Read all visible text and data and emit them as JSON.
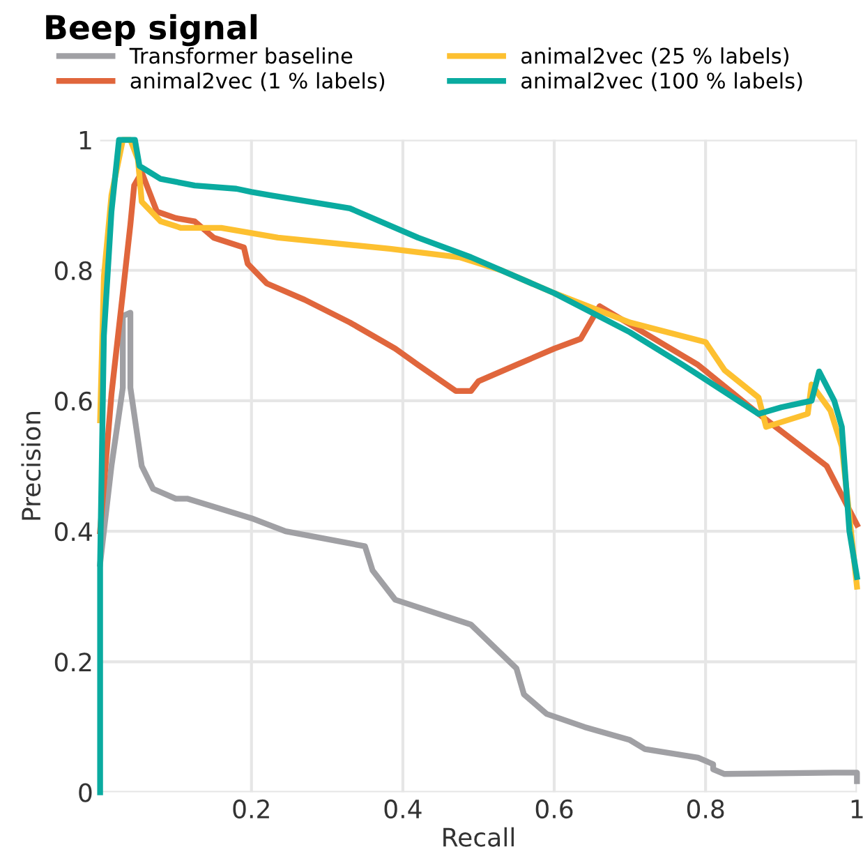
{
  "chart_data": {
    "type": "line",
    "title": "Beep signal",
    "xlabel": "Recall",
    "ylabel": "Precision",
    "xlim": [
      0,
      1
    ],
    "ylim": [
      0,
      1
    ],
    "xticks": [
      0.2,
      0.4,
      0.6,
      0.8,
      1
    ],
    "yticks": [
      0,
      0.2,
      0.4,
      0.6,
      0.8,
      1
    ],
    "grid": true,
    "legend": "top",
    "marker": "none",
    "line_style": "solid",
    "series": [
      {
        "name": "Transformer baseline",
        "color": "#a0a0a4",
        "x": [
          0,
          0.015,
          0.03,
          0.03,
          0.04,
          0.04,
          0.055,
          0.07,
          0.1,
          0.115,
          0.2,
          0.245,
          0.35,
          0.36,
          0.39,
          0.49,
          0.55,
          0.56,
          0.59,
          0.64,
          0.7,
          0.72,
          0.79,
          0.81,
          0.81,
          0.825,
          0.97,
          1.0,
          1.0
        ],
        "values": [
          0.35,
          0.5,
          0.62,
          0.73,
          0.735,
          0.62,
          0.5,
          0.465,
          0.45,
          0.45,
          0.42,
          0.4,
          0.377,
          0.34,
          0.295,
          0.257,
          0.19,
          0.15,
          0.12,
          0.1,
          0.08,
          0.066,
          0.053,
          0.043,
          0.035,
          0.028,
          0.03,
          0.03,
          0.017
        ]
      },
      {
        "name": "animal2vec (1 % labels)",
        "color": "#e0663c",
        "x": [
          0,
          0.015,
          0.03,
          0.04,
          0.045,
          0.055,
          0.075,
          0.1,
          0.125,
          0.15,
          0.19,
          0.195,
          0.22,
          0.27,
          0.33,
          0.39,
          0.42,
          0.47,
          0.49,
          0.5,
          0.55,
          0.6,
          0.635,
          0.66,
          0.79,
          0.87,
          0.96,
          1.0
        ],
        "values": [
          0.4,
          0.61,
          0.765,
          0.87,
          0.93,
          0.95,
          0.89,
          0.88,
          0.875,
          0.85,
          0.835,
          0.81,
          0.78,
          0.755,
          0.72,
          0.68,
          0.655,
          0.615,
          0.615,
          0.63,
          0.655,
          0.68,
          0.695,
          0.745,
          0.655,
          0.58,
          0.5,
          0.41
        ]
      },
      {
        "name": "animal2vec (25 % labels)",
        "color": "#fdc030",
        "x": [
          0,
          0.005,
          0.015,
          0.03,
          0.04,
          0.05,
          0.055,
          0.08,
          0.107,
          0.16,
          0.235,
          0.383,
          0.475,
          0.53,
          0.6,
          0.7,
          0.8,
          0.825,
          0.87,
          0.88,
          0.935,
          0.94,
          0.965,
          0.98,
          1.0
        ],
        "values": [
          0.57,
          0.79,
          0.915,
          1.0,
          1.0,
          0.97,
          0.905,
          0.875,
          0.865,
          0.865,
          0.85,
          0.833,
          0.82,
          0.8,
          0.765,
          0.72,
          0.69,
          0.647,
          0.605,
          0.56,
          0.58,
          0.625,
          0.585,
          0.53,
          0.315
        ]
      },
      {
        "name": "animal2vec (100 % labels)",
        "color": "#0aaba0",
        "x": [
          0,
          0,
          0.005,
          0.015,
          0.025,
          0.046,
          0.052,
          0.066,
          0.08,
          0.125,
          0.18,
          0.2,
          0.225,
          0.33,
          0.42,
          0.49,
          0.6,
          0.7,
          0.77,
          0.87,
          0.9,
          0.94,
          0.95,
          0.97,
          0.98,
          0.99,
          1.0
        ],
        "values": [
          0,
          0.35,
          0.7,
          0.89,
          1.0,
          1.0,
          0.96,
          0.95,
          0.94,
          0.93,
          0.925,
          0.92,
          0.915,
          0.895,
          0.85,
          0.82,
          0.765,
          0.705,
          0.655,
          0.58,
          0.59,
          0.6,
          0.645,
          0.6,
          0.56,
          0.4,
          0.33
        ]
      }
    ]
  }
}
